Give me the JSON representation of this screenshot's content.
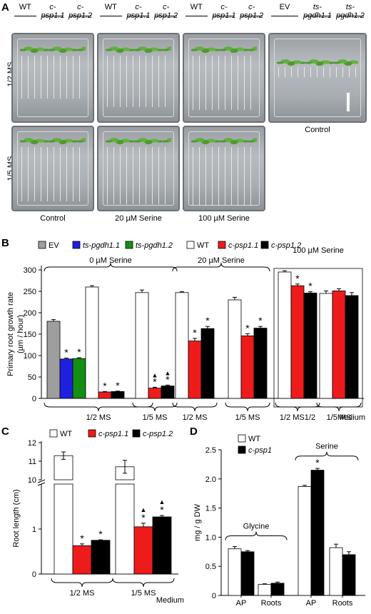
{
  "panel_a": {
    "label": "A",
    "groups": [
      {
        "items": [
          "WT",
          "c-psp1.1",
          "c-psp1.2"
        ],
        "italic": [
          false,
          true,
          true
        ]
      },
      {
        "items": [
          "WT",
          "c-psp1.1",
          "c-psp1.2"
        ],
        "italic": [
          false,
          true,
          true
        ]
      },
      {
        "items": [
          "WT",
          "c-psp1.1",
          "c-psp1.2"
        ],
        "italic": [
          false,
          true,
          true
        ]
      },
      {
        "items": [
          "EV",
          "ts-pgdh1.1",
          "ts-pgdh1.2"
        ],
        "italic": [
          false,
          true,
          true
        ]
      }
    ],
    "row_labels": [
      "1/2 MS",
      "1/5 MS"
    ],
    "bottom_labels": [
      "Control",
      "20 µM Serine",
      "100 µM Serine"
    ],
    "right_caption": "Control"
  },
  "panel_b": {
    "label": "B",
    "legend": [
      "EV",
      "ts-pgdh1.1",
      "ts-pgdh1.2",
      "WT",
      "c-psp1.1",
      "c-psp1.2"
    ],
    "legend_italic": [
      false,
      true,
      true,
      false,
      true,
      true
    ],
    "colors": {
      "EV": "#9e9e9e",
      "ts-pgdh1.1": "#1f1fe0",
      "ts-pgdh1.2": "#138f13",
      "WT": "#ffffff",
      "c-psp1.1": "#ee1b1b",
      "c-psp1.2": "#000000"
    },
    "brackets": [
      "0 µM Serine",
      "20 µM Serine",
      "100 µM Serine"
    ],
    "medium_groups": [
      "1/2 MS",
      "1/5 MS",
      "1/2 MS",
      "1/5 MS",
      "1/2 MS1/2",
      "1/5 MS"
    ],
    "medium_label": "Medium",
    "star": "*",
    "triangle": "▲",
    "chart_data": {
      "type": "bar",
      "ylabel": "Primary root growth rate\n(µm / hour)",
      "ylim": [
        0,
        300
      ],
      "yticks": [
        "0",
        "50",
        "100",
        "150",
        "200",
        "250",
        "300"
      ],
      "bars": [
        {
          "group": 0,
          "series": "EV",
          "value": 180,
          "err": 4
        },
        {
          "group": 0,
          "series": "ts-pgdh1.1",
          "value": 92,
          "err": 2,
          "star": true
        },
        {
          "group": 0,
          "series": "ts-pgdh1.2",
          "value": 93,
          "err": 2,
          "star": true
        },
        {
          "group": 0,
          "series": "WT",
          "value": 260,
          "err": 3
        },
        {
          "group": 0,
          "series": "c-psp1.1",
          "value": 15,
          "err": 1,
          "star": true
        },
        {
          "group": 0,
          "series": "c-psp1.2",
          "value": 16,
          "err": 1,
          "star": true
        },
        {
          "group": 1,
          "series": "WT",
          "value": 247,
          "err": 6
        },
        {
          "group": 1,
          "series": "c-psp1.1",
          "value": 24,
          "err": 2,
          "star": true,
          "tri": true
        },
        {
          "group": 1,
          "series": "c-psp1.2",
          "value": 29,
          "err": 2,
          "star": true,
          "tri": true
        },
        {
          "group": 2,
          "series": "WT",
          "value": 247,
          "err": 2
        },
        {
          "group": 2,
          "series": "c-psp1.1",
          "value": 134,
          "err": 6,
          "star": true
        },
        {
          "group": 2,
          "series": "c-psp1.2",
          "value": 163,
          "err": 5,
          "star": true
        },
        {
          "group": 3,
          "series": "WT",
          "value": 230,
          "err": 6
        },
        {
          "group": 3,
          "series": "c-psp1.1",
          "value": 146,
          "err": 5,
          "star": true
        },
        {
          "group": 3,
          "series": "c-psp1.2",
          "value": 164,
          "err": 4,
          "star": true
        },
        {
          "group": 4,
          "series": "WT",
          "value": 295,
          "err": 3
        },
        {
          "group": 4,
          "series": "c-psp1.1",
          "value": 263,
          "err": 4,
          "star": true
        },
        {
          "group": 4,
          "series": "c-psp1.2",
          "value": 246,
          "err": 3,
          "star": true
        },
        {
          "group": 5,
          "series": "WT",
          "value": 245,
          "err": 6
        },
        {
          "group": 5,
          "series": "c-psp1.1",
          "value": 251,
          "err": 5
        },
        {
          "group": 5,
          "series": "c-psp1.2",
          "value": 240,
          "err": 7
        }
      ]
    }
  },
  "panel_c": {
    "label": "C",
    "legend": [
      "WT",
      "c-psp1.1",
      "c-psp1.2"
    ],
    "legend_italic": [
      false,
      true,
      true
    ],
    "colors": {
      "WT": "#ffffff",
      "c-psp1.1": "#ee1b1b",
      "c-psp1.2": "#000000"
    },
    "medium_groups": [
      "1/2 MS",
      "1/5 MS"
    ],
    "medium_label": "Medium",
    "star": "*",
    "triangle": "▲",
    "chart_data": {
      "type": "bar",
      "ylabel": "Root length (cm)",
      "yticks_lower": [
        "0",
        "1"
      ],
      "yticks_upper": [
        "10",
        "11",
        "12"
      ],
      "bars": [
        {
          "group": 0,
          "series": "WT",
          "value": 11.3,
          "err": 0.2
        },
        {
          "group": 0,
          "series": "c-psp1.1",
          "value": 0.63,
          "err": 0.04,
          "star": true
        },
        {
          "group": 0,
          "series": "c-psp1.2",
          "value": 0.75,
          "err": 0.01,
          "star": true
        },
        {
          "group": 1,
          "series": "WT",
          "value": 10.7,
          "err": 0.35
        },
        {
          "group": 1,
          "series": "c-psp1.1",
          "value": 1.05,
          "err": 0.08,
          "star": true,
          "tri": true
        },
        {
          "group": 1,
          "series": "c-psp1.2",
          "value": 1.27,
          "err": 0.03,
          "star": true,
          "tri": true
        }
      ]
    }
  },
  "panel_d": {
    "label": "D",
    "legend": [
      "WT",
      "c-psp1"
    ],
    "legend_italic": [
      false,
      true
    ],
    "colors": {
      "WT": "#ffffff",
      "c-psp1": "#000000"
    },
    "group_labels": [
      "Glycine",
      "Serine"
    ],
    "x_labels": [
      "AP",
      "Roots",
      "AP",
      "Roots"
    ],
    "star": "*",
    "chart_data": {
      "type": "bar",
      "ylabel": "mg / g DW",
      "ylim": [
        0,
        2.5
      ],
      "yticks": [
        "0",
        "0.5",
        "1.0",
        "1.5",
        "2.0",
        "2.5"
      ],
      "categories": [
        "AP",
        "Roots",
        "AP",
        "Roots"
      ],
      "series": [
        {
          "name": "WT",
          "values": [
            0.8,
            0.19,
            1.87,
            0.82
          ],
          "err": [
            0.04,
            0.01,
            0.02,
            0.06
          ]
        },
        {
          "name": "c-psp1",
          "values": [
            0.75,
            0.21,
            2.15,
            0.7
          ],
          "err": [
            0.02,
            0.02,
            0.03,
            0.05
          ]
        }
      ],
      "stars": [
        [
          2,
          1
        ]
      ]
    }
  }
}
